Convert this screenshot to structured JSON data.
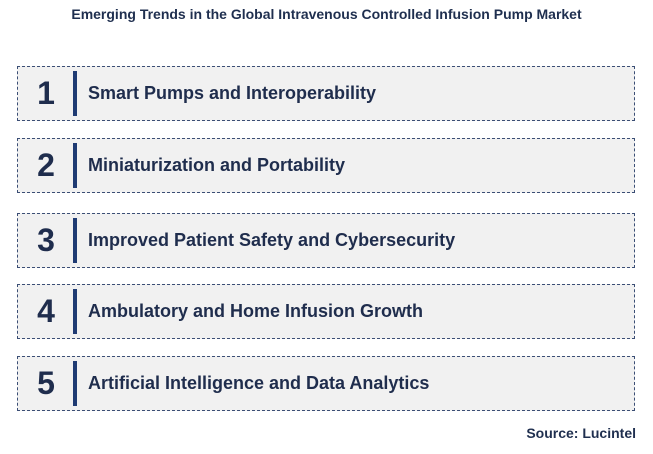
{
  "title": "Emerging Trends in the Global Intravenous Controlled Infusion Pump Market",
  "trends": [
    {
      "number": "1",
      "label": "Smart Pumps and Interoperability"
    },
    {
      "number": "2",
      "label": "Miniaturization and Portability"
    },
    {
      "number": "3",
      "label": "Improved Patient Safety and Cybersecurity"
    },
    {
      "number": "4",
      "label": "Ambulatory and Home Infusion Growth"
    },
    {
      "number": "5",
      "label": "Artificial Intelligence and Data Analytics"
    }
  ],
  "source": "Source: Lucintel",
  "colors": {
    "text": "#1f2d4d",
    "accent_bar": "#1f3b73",
    "box_border": "#3b4e75",
    "box_fill": "#f1f1f1"
  }
}
